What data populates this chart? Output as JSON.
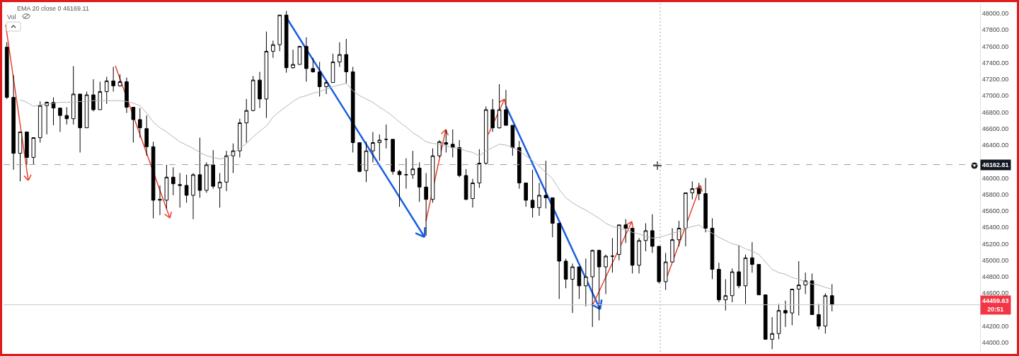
{
  "chart_data": {
    "type": "candlestick",
    "categories": [
      null,
      null,
      null,
      null,
      null,
      null,
      null,
      null,
      null,
      null,
      null,
      null,
      null,
      null,
      null,
      null,
      null,
      null,
      null,
      null,
      null,
      null,
      null,
      null,
      null,
      null,
      null,
      null,
      null,
      null,
      null,
      null,
      null,
      null,
      null,
      null,
      null,
      null,
      null,
      null,
      null,
      null,
      null,
      null,
      null,
      null,
      null,
      null,
      null,
      null,
      null,
      null,
      null,
      null,
      null,
      null,
      null,
      null,
      null,
      null,
      null,
      null,
      null,
      null,
      null,
      null,
      null,
      null,
      null,
      null,
      null,
      null,
      null,
      null,
      null,
      null,
      null,
      null,
      null,
      null,
      null,
      null,
      null,
      null,
      null,
      null,
      null,
      null,
      null,
      null,
      null,
      null,
      null,
      null,
      null,
      null,
      null,
      null,
      null,
      null,
      null,
      null,
      null,
      null,
      null,
      null,
      null,
      null,
      null,
      null,
      null,
      null,
      null,
      null,
      null,
      null,
      null,
      null,
      null,
      null,
      null,
      null,
      null,
      null,
      null
    ],
    "ohlc": [
      [
        47590,
        47650,
        46960,
        46980
      ],
      [
        46980,
        47250,
        46100,
        46300
      ],
      [
        46300,
        46560,
        45960,
        46560
      ],
      [
        46560,
        46560,
        46160,
        46250
      ],
      [
        46250,
        46490,
        46160,
        46490
      ],
      [
        46490,
        46930,
        46430,
        46880
      ],
      [
        46880,
        46930,
        46530,
        46920
      ],
      [
        46920,
        46980,
        46640,
        46850
      ],
      [
        46850,
        46850,
        46560,
        46760
      ],
      [
        46760,
        46860,
        46650,
        46720
      ],
      [
        46720,
        47360,
        46650,
        47020
      ],
      [
        47020,
        47020,
        46310,
        46610
      ],
      [
        46610,
        47050,
        46610,
        47010
      ],
      [
        47010,
        47200,
        46810,
        46830
      ],
      [
        46830,
        47170,
        46830,
        47050
      ],
      [
        47050,
        47230,
        46900,
        47180
      ],
      [
        47180,
        47350,
        47050,
        47120
      ],
      [
        47120,
        47260,
        47110,
        47170
      ],
      [
        47170,
        47220,
        46790,
        46860
      ],
      [
        46860,
        46860,
        46430,
        46710
      ],
      [
        46710,
        46850,
        46490,
        46610
      ],
      [
        46600,
        46760,
        46270,
        46380
      ],
      [
        46380,
        46440,
        45510,
        45730
      ],
      [
        45730,
        45910,
        45550,
        45740
      ],
      [
        45730,
        46160,
        45630,
        46010
      ],
      [
        46010,
        46130,
        45790,
        45930
      ],
      [
        45920,
        46060,
        45640,
        45910
      ],
      [
        45910,
        46040,
        45700,
        45790
      ],
      [
        45790,
        46060,
        45500,
        46040
      ],
      [
        46040,
        46490,
        45760,
        45850
      ],
      [
        45850,
        46190,
        45820,
        46160
      ],
      [
        46160,
        46340,
        45870,
        45900
      ],
      [
        45880,
        46060,
        45640,
        45950
      ],
      [
        45950,
        46330,
        45840,
        46270
      ],
      [
        46270,
        46420,
        46060,
        46330
      ],
      [
        46330,
        46720,
        46250,
        46670
      ],
      [
        46670,
        46960,
        46430,
        46820
      ],
      [
        46820,
        47240,
        46810,
        47190
      ],
      [
        47190,
        47290,
        46850,
        46960
      ],
      [
        46960,
        47780,
        46730,
        47540
      ],
      [
        47540,
        47670,
        47460,
        47620
      ],
      [
        47620,
        47980,
        47540,
        47980
      ],
      [
        47980,
        48030,
        47280,
        47340
      ],
      [
        47340,
        47560,
        47330,
        47380
      ],
      [
        47380,
        47600,
        47380,
        47600
      ],
      [
        47600,
        47710,
        47170,
        47330
      ],
      [
        47330,
        47460,
        47280,
        47290
      ],
      [
        47290,
        47410,
        46990,
        47110
      ],
      [
        47110,
        47190,
        47020,
        47160
      ],
      [
        47160,
        47510,
        47160,
        47410
      ],
      [
        47410,
        47650,
        47350,
        47500
      ],
      [
        47500,
        47690,
        47150,
        47290
      ],
      [
        47290,
        47350,
        46310,
        46430
      ],
      [
        46430,
        46430,
        46070,
        46080
      ],
      [
        46090,
        46440,
        45950,
        46330
      ],
      [
        46330,
        46560,
        46190,
        46430
      ],
      [
        46430,
        46530,
        46210,
        46460
      ],
      [
        46470,
        46650,
        46360,
        46470
      ],
      [
        46470,
        46470,
        46040,
        46080
      ],
      [
        46080,
        46100,
        45650,
        46040
      ],
      [
        46040,
        46240,
        45870,
        46040
      ],
      [
        46040,
        46330,
        45990,
        46110
      ],
      [
        46120,
        46190,
        45710,
        45890
      ],
      [
        45890,
        46060,
        45300,
        45740
      ],
      [
        45740,
        46360,
        45700,
        46270
      ],
      [
        46270,
        46460,
        46250,
        46440
      ],
      [
        46430,
        46590,
        46310,
        46410
      ],
      [
        46410,
        46590,
        46250,
        46370
      ],
      [
        46370,
        46460,
        46010,
        46030
      ],
      [
        46030,
        46110,
        45730,
        45740
      ],
      [
        45750,
        45990,
        45640,
        45940
      ],
      [
        45940,
        46350,
        45880,
        46180
      ],
      [
        46180,
        46870,
        46160,
        46830
      ],
      [
        46830,
        46960,
        46560,
        46610
      ],
      [
        46610,
        47140,
        46600,
        46830
      ],
      [
        46830,
        47070,
        46640,
        46640
      ],
      [
        46640,
        46640,
        46270,
        46370
      ],
      [
        46370,
        46450,
        45870,
        45940
      ],
      [
        45940,
        45940,
        45650,
        45730
      ],
      [
        45730,
        46100,
        45520,
        45640
      ],
      [
        45640,
        45940,
        45540,
        45790
      ],
      [
        45790,
        46210,
        45630,
        45760
      ],
      [
        45760,
        45760,
        45280,
        45450
      ],
      [
        45450,
        45450,
        44530,
        44990
      ],
      [
        44990,
        45020,
        44660,
        44770
      ],
      [
        44770,
        44960,
        44360,
        44920
      ],
      [
        44920,
        44920,
        44530,
        44690
      ],
      [
        44690,
        45020,
        44440,
        44800
      ],
      [
        44800,
        45130,
        44190,
        45120
      ],
      [
        45120,
        45130,
        44270,
        44920
      ],
      [
        44920,
        45070,
        44590,
        45050
      ],
      [
        45050,
        45270,
        44850,
        45050
      ],
      [
        45070,
        45430,
        45000,
        45430
      ],
      [
        45430,
        45500,
        45210,
        45390
      ],
      [
        45390,
        45390,
        44840,
        44940
      ],
      [
        44940,
        45270,
        44840,
        45240
      ],
      [
        45240,
        45450,
        45110,
        45360
      ],
      [
        45360,
        45560,
        45090,
        45170
      ],
      [
        45170,
        45170,
        44720,
        44740
      ],
      [
        44740,
        45090,
        44640,
        44980
      ],
      [
        44980,
        45390,
        44980,
        45250
      ],
      [
        45250,
        45480,
        45170,
        45390
      ],
      [
        45390,
        45820,
        45170,
        45820
      ],
      [
        45820,
        45960,
        45740,
        45870
      ],
      [
        45870,
        45940,
        45730,
        45810
      ],
      [
        45810,
        46000,
        45340,
        45390
      ],
      [
        45390,
        45510,
        44770,
        44890
      ],
      [
        44890,
        44970,
        44490,
        44520
      ],
      [
        44520,
        44770,
        44390,
        44570
      ],
      [
        44570,
        44900,
        44490,
        44860
      ],
      [
        44860,
        45180,
        44660,
        44690
      ],
      [
        44690,
        45070,
        44470,
        45030
      ],
      [
        45030,
        45220,
        44850,
        44950
      ],
      [
        44950,
        44950,
        44580,
        44580
      ],
      [
        44580,
        44580,
        44040,
        44040
      ],
      [
        44040,
        44310,
        43920,
        44110
      ],
      [
        44110,
        44470,
        44040,
        44390
      ],
      [
        44390,
        44510,
        44190,
        44360
      ],
      [
        44360,
        44650,
        44210,
        44650
      ],
      [
        44650,
        44990,
        44330,
        44700
      ],
      [
        44700,
        44850,
        44590,
        44750
      ],
      [
        44750,
        44840,
        44340,
        44340
      ],
      [
        44340,
        44470,
        44160,
        44200
      ],
      [
        44200,
        44600,
        44110,
        44570
      ],
      [
        44570,
        44710,
        44380,
        44460
      ]
    ],
    "series": [
      {
        "type": "line",
        "color": "#b5b5b5",
        "values": [
          null,
          null,
          46950,
          46920,
          46870,
          46890,
          46900,
          46910,
          46920,
          46920,
          46920,
          46930,
          46930,
          46940,
          46940,
          46940,
          46940,
          46940,
          46930,
          46910,
          46880,
          46790,
          46680,
          46610,
          46560,
          46500,
          46440,
          46400,
          46360,
          46310,
          46270,
          46250,
          46230,
          46250,
          46300,
          46360,
          46420,
          46500,
          46570,
          46630,
          46740,
          46810,
          46870,
          46930,
          46980,
          47000,
          47030,
          47050,
          47080,
          47110,
          47130,
          47150,
          47060,
          47000,
          46960,
          46920,
          46860,
          46810,
          46750,
          46680,
          46620,
          46550,
          46500,
          46440,
          46420,
          46410,
          46390,
          46370,
          46360,
          46330,
          46310,
          46270,
          46330,
          46370,
          46410,
          46400,
          46370,
          46330,
          46270,
          46210,
          46140,
          46070,
          45990,
          45860,
          45760,
          45700,
          45650,
          45610,
          45560,
          45510,
          45450,
          45410,
          45390,
          45370,
          45340,
          45320,
          45290,
          45270,
          45280,
          45300,
          45330,
          45350,
          45390,
          45410,
          45430,
          45370,
          45330,
          45280,
          45240,
          45200,
          45180,
          45140,
          45110,
          45070,
          44980,
          44890,
          44850,
          44830,
          44790,
          44770,
          44740,
          44710,
          44700,
          44670,
          44650
        ]
      }
    ],
    "ylim": [
      43880,
      48120
    ],
    "yticks": [
      {
        "value": 48000,
        "label": "48000.00"
      },
      {
        "value": 47800,
        "label": "47800.00"
      },
      {
        "value": 47600,
        "label": "47600.00"
      },
      {
        "value": 47400,
        "label": "47400.00"
      },
      {
        "value": 47200,
        "label": "47200.00"
      },
      {
        "value": 47000,
        "label": "47000.00"
      },
      {
        "value": 46800,
        "label": "46800.00"
      },
      {
        "value": 46600,
        "label": "46600.00"
      },
      {
        "value": 46400,
        "label": "46400.00"
      },
      {
        "value": 46000,
        "label": "46000.00"
      },
      {
        "value": 45800,
        "label": "45800.00"
      },
      {
        "value": 45600,
        "label": "45600.00"
      },
      {
        "value": 45400,
        "label": "45400.00"
      },
      {
        "value": 45200,
        "label": "45200.00"
      },
      {
        "value": 45000,
        "label": "45000.00"
      },
      {
        "value": 44800,
        "label": "44800.00"
      },
      {
        "value": 44600,
        "label": "44600.00"
      },
      {
        "value": 44200,
        "label": "44200.00"
      },
      {
        "value": 44000,
        "label": "44000.00"
      }
    ],
    "ref_lines": [
      {
        "axis": "y",
        "value": 46162.81,
        "label": "46162.81",
        "color": "#a0a0a0",
        "line_style": "dashed"
      },
      {
        "axis": "y",
        "value": 44459.63,
        "label": "44459.63\n20:51",
        "color": "#c8c8c8",
        "line_style": "solid"
      }
    ],
    "annotations": [
      "EMA 20 close 0 46169.11",
      "Vol"
    ],
    "tick_labels": "y"
  }
}
